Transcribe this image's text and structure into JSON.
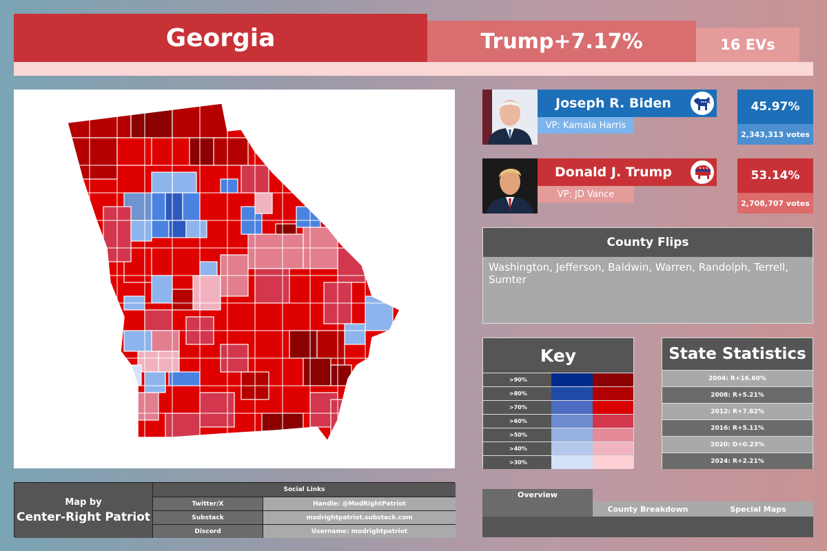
{
  "header": {
    "state": "Georgia",
    "margin": "Trump+7.17%",
    "electoral_votes": "16 EVs"
  },
  "map": {
    "colors": {
      "r90": "#8b0000",
      "r80": "#b50000",
      "r70": "#df0000",
      "r60": "#d2374e",
      "r50": "#e27e8e",
      "r40": "#f0b2be",
      "d50": "#8db4ec",
      "d60": "#6f94d0",
      "d70": "#4a82e0",
      "d80": "#2d58c0",
      "d40": "#b4cdf0",
      "d30": "#d4e4fa"
    }
  },
  "candidates": [
    {
      "name": "Joseph R. Biden",
      "vp": "VP: Kamala Harris",
      "percent": "45.97%",
      "votes": "2,343,313 votes",
      "party_icon": "donkey-icon",
      "colors": {
        "bar": "#1c6fb8",
        "vp_bar": "#7db4ec",
        "pct": "#1c6fb8",
        "votes": "#4b8fd0"
      }
    },
    {
      "name": "Donald J. Trump",
      "vp": "VP: JD Vance",
      "percent": "53.14%",
      "votes": "2,708,707 votes",
      "party_icon": "elephant-icon",
      "colors": {
        "bar": "#c83237",
        "vp_bar": "#e49b9a",
        "pct": "#c83237",
        "votes": "#dc6b6b"
      }
    }
  ],
  "county_flips": {
    "title": "County Flips",
    "text": "Washington, Jefferson, Baldwin, Warren, Randolph, Terrell, Sumter"
  },
  "key": {
    "title": "Key",
    "rows": [
      {
        "label": ">90%",
        "dem": "#002a8c",
        "rep": "#8b0000"
      },
      {
        "label": ">80%",
        "dem": "#1f4aa8",
        "rep": "#b00000"
      },
      {
        "label": ">70%",
        "dem": "#4b6cc0",
        "rep": "#d80000"
      },
      {
        "label": ">60%",
        "dem": "#6e8cd0",
        "rep": "#d2374e"
      },
      {
        "label": ">50%",
        "dem": "#96b0e2",
        "rep": "#e58a98"
      },
      {
        "label": ">40%",
        "dem": "#b4c8ec",
        "rep": "#f0b4c0"
      },
      {
        "label": ">30%",
        "dem": "#d4e2f8",
        "rep": "#fbcfd4"
      }
    ]
  },
  "state_statistics": {
    "title": "State Statistics",
    "rows": [
      "2004: R+16.60%",
      "2008: R+5.21%",
      "2012: R+7.82%",
      "2016: R+5.11%",
      "2020: D+0.23%",
      "2024: R+2.21%"
    ]
  },
  "credits": {
    "by": "Map by",
    "author": "Center-Right Patriot",
    "social_title": "Social Links",
    "links": [
      {
        "site": "Twitter/X",
        "value": "Handle: @ModRightPatriot"
      },
      {
        "site": "Substack",
        "value": "modrightpatriot.substack.com"
      },
      {
        "site": "Discord",
        "value": "Username: modrightpatriot"
      }
    ]
  },
  "tabs": [
    "Overview",
    "County Breakdown",
    "Special Maps"
  ],
  "active_tab": "Overview"
}
